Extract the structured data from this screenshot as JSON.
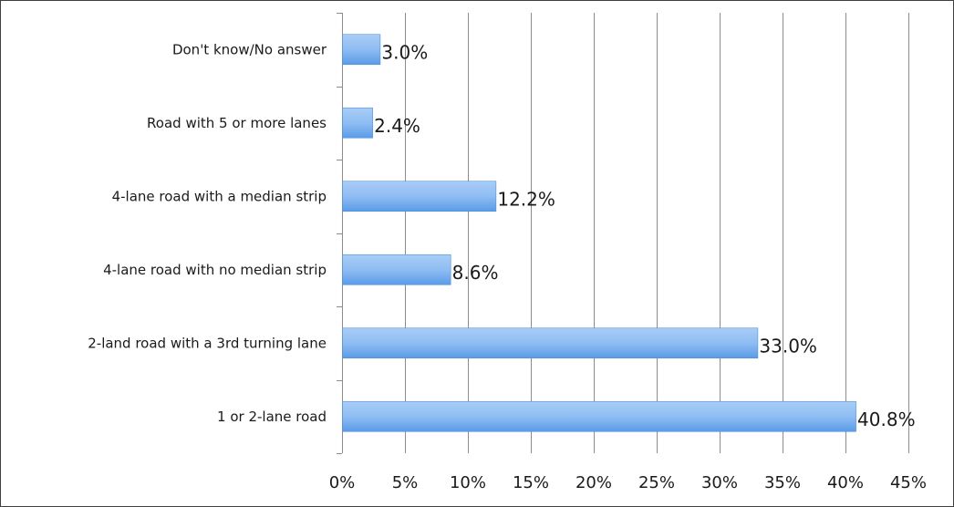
{
  "chart_data": {
    "type": "bar",
    "orientation": "horizontal",
    "categories": [
      "Don't know/No answer",
      "Road with 5 or more lanes",
      "4-lane road with a median strip",
      "4-lane road with no median strip",
      "2-land road with a 3rd turning lane",
      "1 or 2-lane road"
    ],
    "values": [
      3.0,
      2.4,
      12.2,
      8.6,
      33.0,
      40.8
    ],
    "value_labels": [
      "3.0%",
      "2.4%",
      "12.2%",
      "8.6%",
      "33.0%",
      "40.8%"
    ],
    "x_ticks": [
      0,
      5,
      10,
      15,
      20,
      25,
      30,
      35,
      40,
      45
    ],
    "x_tick_labels": [
      "0%",
      "5%",
      "10%",
      "15%",
      "20%",
      "25%",
      "30%",
      "35%",
      "40%",
      "45%"
    ],
    "xlim": [
      0,
      45
    ],
    "grid": true,
    "legend": "none",
    "title": "",
    "xlabel": "",
    "ylabel": "",
    "colors": {
      "bar_top": "#a9cdf7",
      "bar_bottom": "#5a9be8",
      "bar_edge": "#4d8fdc",
      "grid": "#8c8c8c"
    }
  }
}
